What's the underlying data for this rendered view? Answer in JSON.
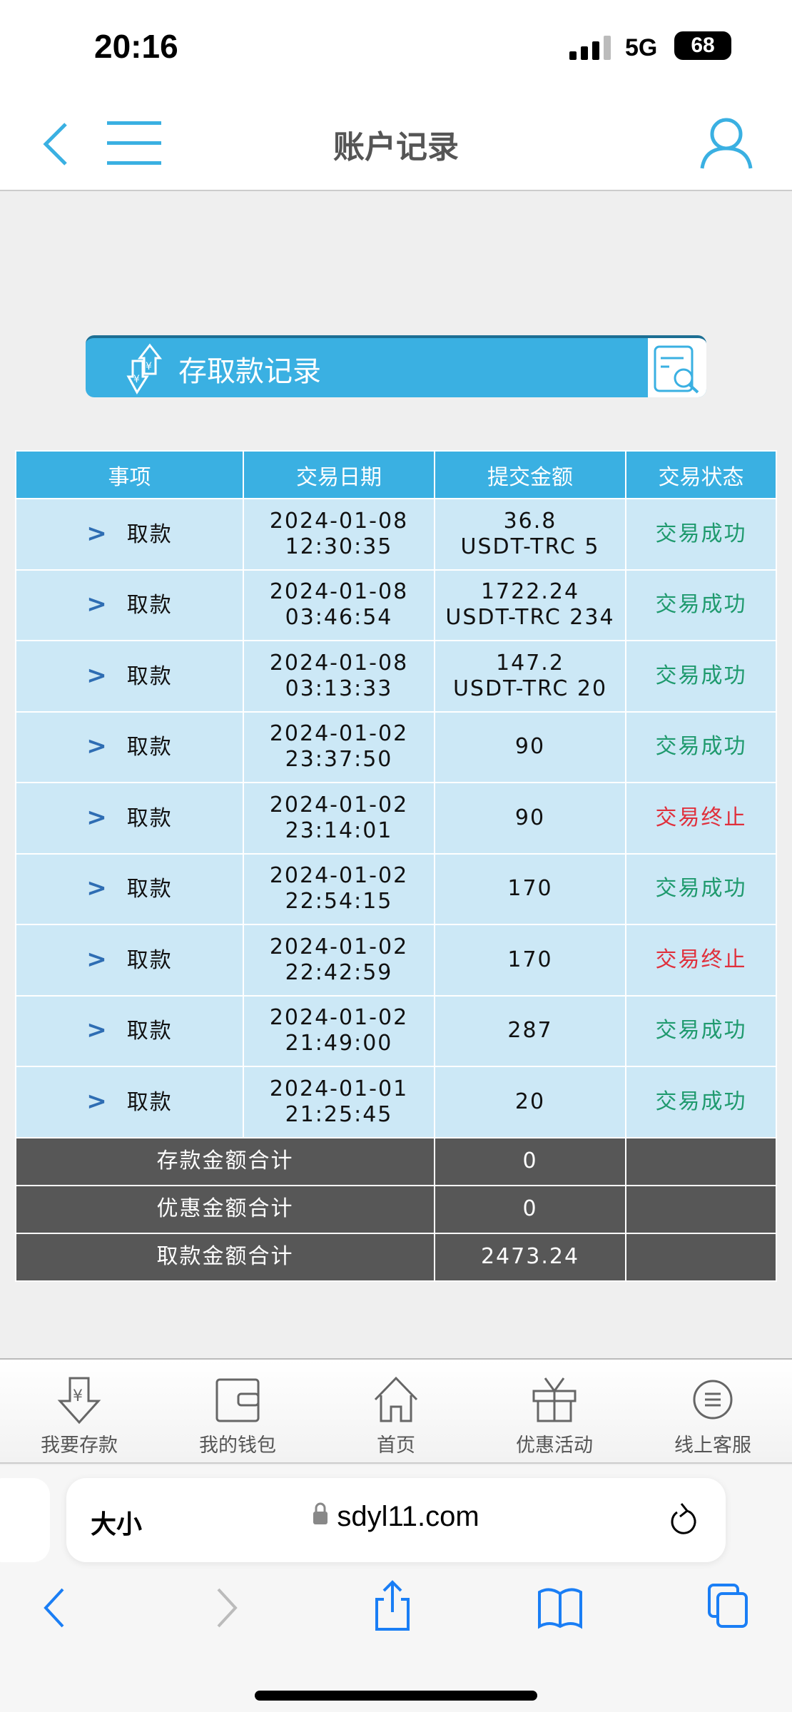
{
  "status_bar": {
    "time": "20:16",
    "network": "5G",
    "battery": "68"
  },
  "header": {
    "title": "账户记录"
  },
  "banner": {
    "title": "存取款记录"
  },
  "table": {
    "headers": [
      "事项",
      "交易日期",
      "提交金额",
      "交易状态"
    ],
    "rows": [
      {
        "type": "取款",
        "date": "2024-01-08",
        "time": "12:30:35",
        "amount": "36.8",
        "amount2": "USDT-TRC 5",
        "status": "交易成功",
        "ok": true
      },
      {
        "type": "取款",
        "date": "2024-01-08",
        "time": "03:46:54",
        "amount": "1722.24",
        "amount2": "USDT-TRC 234",
        "status": "交易成功",
        "ok": true
      },
      {
        "type": "取款",
        "date": "2024-01-08",
        "time": "03:13:33",
        "amount": "147.2",
        "amount2": "USDT-TRC 20",
        "status": "交易成功",
        "ok": true
      },
      {
        "type": "取款",
        "date": "2024-01-02",
        "time": "23:37:50",
        "amount": "90",
        "amount2": "",
        "status": "交易成功",
        "ok": true
      },
      {
        "type": "取款",
        "date": "2024-01-02",
        "time": "23:14:01",
        "amount": "90",
        "amount2": "",
        "status": "交易终止",
        "ok": false
      },
      {
        "type": "取款",
        "date": "2024-01-02",
        "time": "22:54:15",
        "amount": "170",
        "amount2": "",
        "status": "交易成功",
        "ok": true
      },
      {
        "type": "取款",
        "date": "2024-01-02",
        "time": "22:42:59",
        "amount": "170",
        "amount2": "",
        "status": "交易终止",
        "ok": false
      },
      {
        "type": "取款",
        "date": "2024-01-02",
        "time": "21:49:00",
        "amount": "287",
        "amount2": "",
        "status": "交易成功",
        "ok": true
      },
      {
        "type": "取款",
        "date": "2024-01-01",
        "time": "21:25:45",
        "amount": "20",
        "amount2": "",
        "status": "交易成功",
        "ok": true
      }
    ],
    "summary": [
      {
        "label": "存款金额合计",
        "value": "0"
      },
      {
        "label": "优惠金额合计",
        "value": "0"
      },
      {
        "label": "取款金额合计",
        "value": "2473.24"
      }
    ]
  },
  "bottom_nav": [
    {
      "label": "我要存款",
      "icon": "deposit-icon"
    },
    {
      "label": "我的钱包",
      "icon": "wallet-icon"
    },
    {
      "label": "首页",
      "icon": "home-icon"
    },
    {
      "label": "优惠活动",
      "icon": "gift-icon"
    },
    {
      "label": "线上客服",
      "icon": "support-icon"
    }
  ],
  "browser": {
    "text_size": "大小",
    "url": "sdyl11.com"
  },
  "colors": {
    "accent": "#3ab0e2",
    "success": "#1f9a6e",
    "fail": "#e0303c",
    "summary_bg": "#575757",
    "row_bg": "#cce8f6"
  }
}
